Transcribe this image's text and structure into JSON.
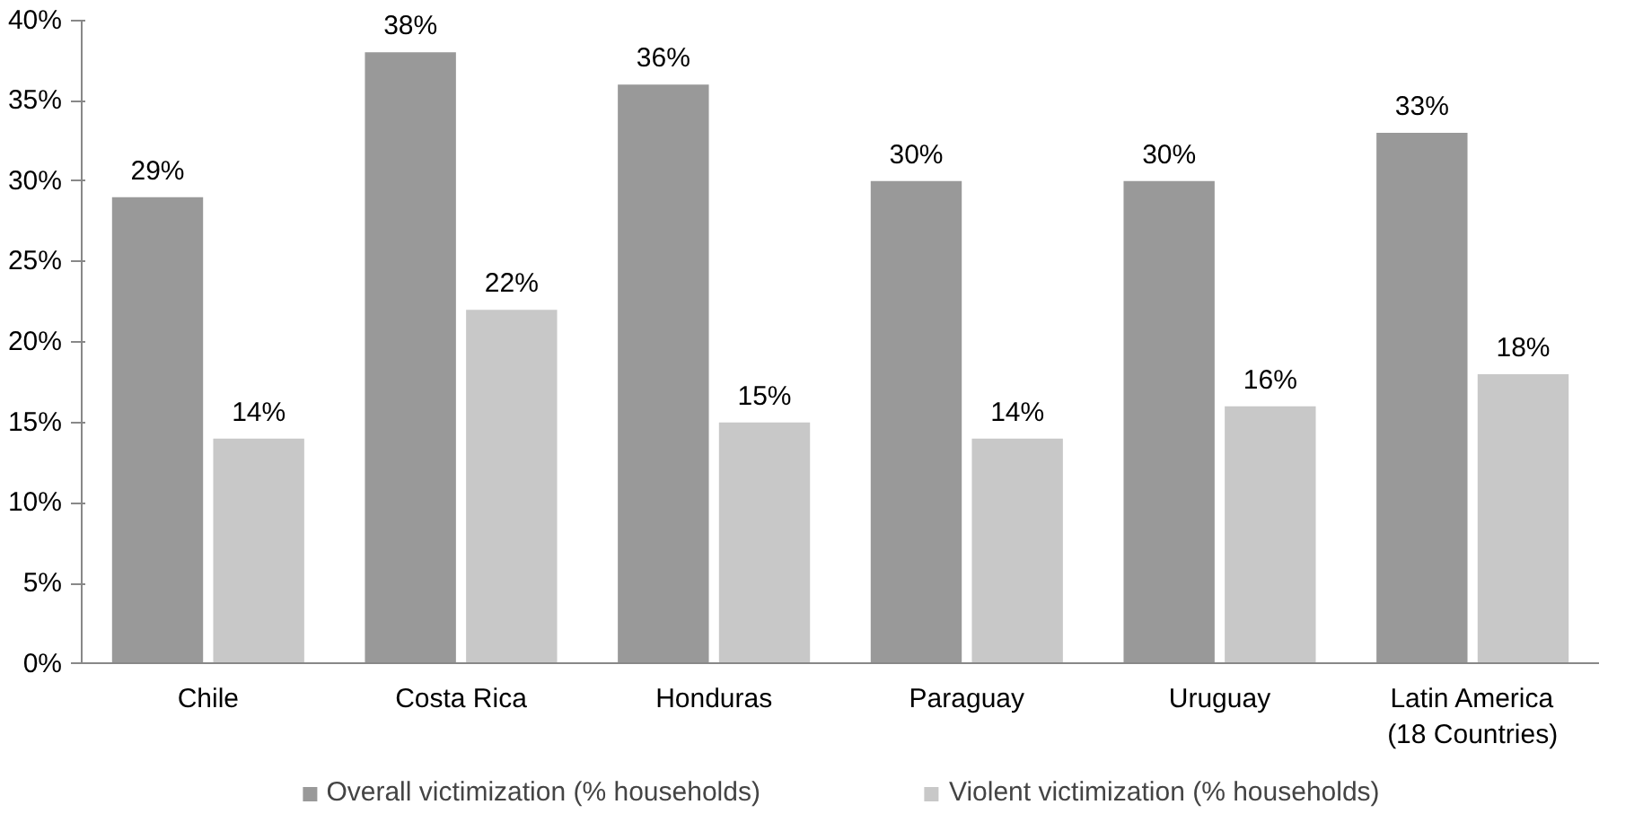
{
  "chart_data": {
    "type": "bar",
    "categories": [
      "Chile",
      "Costa Rica",
      "Honduras",
      "Paraguay",
      "Uruguay",
      "Latin America\n(18 Countries)"
    ],
    "series": [
      {
        "name": "Overall victimization (% households)",
        "color": "#999999",
        "values": [
          29,
          38,
          36,
          30,
          30,
          33
        ],
        "value_labels": [
          "29%",
          "38%",
          "36%",
          "30%",
          "30%",
          "33%"
        ]
      },
      {
        "name": "Violent victimization (% households)",
        "color": "#c8c8c8",
        "values": [
          14,
          22,
          15,
          14,
          16,
          18
        ],
        "value_labels": [
          "14%",
          "22%",
          "15%",
          "14%",
          "16%",
          "18%"
        ]
      }
    ],
    "ylim": [
      0,
      40
    ],
    "yticks": [
      {
        "value": 0,
        "label": "0%"
      },
      {
        "value": 5,
        "label": "5%"
      },
      {
        "value": 10,
        "label": "10%"
      },
      {
        "value": 15,
        "label": "15%"
      },
      {
        "value": 20,
        "label": "20%"
      },
      {
        "value": 25,
        "label": "25%"
      },
      {
        "value": 30,
        "label": "30%"
      },
      {
        "value": 35,
        "label": "35%"
      },
      {
        "value": 40,
        "label": "40%"
      }
    ],
    "grid": false,
    "legend": "bottom"
  }
}
